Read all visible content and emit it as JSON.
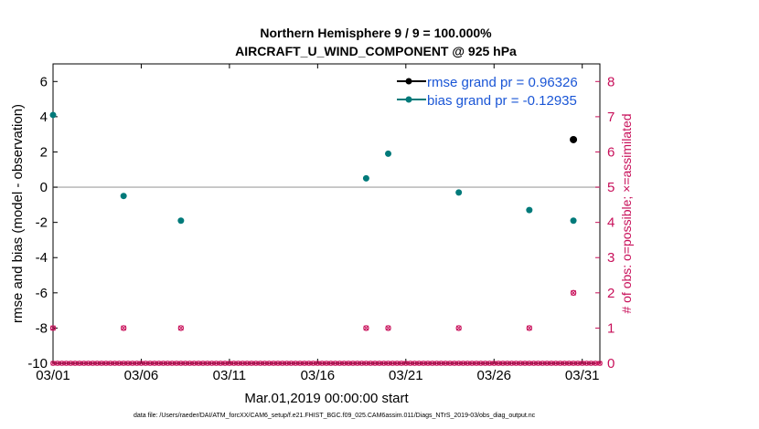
{
  "chart_data": {
    "type": "scatter",
    "title_line1": "Northern Hemisphere 9 / 9 = 100.000%",
    "title_line2": "AIRCRAFT_U_WIND_COMPONENT @ 925 hPa",
    "xlabel": "Mar.01,2019 00:00:00 start",
    "ylabel": "rmse and bias (model - observation)",
    "y2label": "# of obs: o=possible; ×=assimilated",
    "xlim": [
      1,
      32
    ],
    "ylim": [
      -10,
      7
    ],
    "y2lim": [
      0,
      8.5
    ],
    "x_ticks": [
      1,
      6,
      11,
      16,
      21,
      26,
      31
    ],
    "x_tick_labels": [
      "03/01",
      "03/06",
      "03/11",
      "03/16",
      "03/21",
      "03/26",
      "03/31"
    ],
    "y_ticks": [
      -10,
      -8,
      -6,
      -4,
      -2,
      0,
      2,
      4,
      6
    ],
    "y_tick_labels": [
      "-10",
      "-8",
      "-6",
      "-4",
      "-2",
      "0",
      "2",
      "4",
      "6"
    ],
    "y2_ticks": [
      0,
      1,
      2,
      3,
      4,
      5,
      6,
      7,
      8
    ],
    "y2_tick_labels": [
      "0",
      "1",
      "2",
      "3",
      "4",
      "5",
      "6",
      "7",
      "8"
    ],
    "legend": [
      {
        "label": "rmse grand pr = 0.96326",
        "color": "#000000"
      },
      {
        "label": "bias grand pr = -0.12935",
        "color": "#007a7a"
      }
    ],
    "series": [
      {
        "name": "rmse",
        "color": "#000000",
        "x": [
          30.5
        ],
        "y": [
          2.7
        ]
      },
      {
        "name": "bias",
        "color": "#007a7a",
        "x": [
          1.0,
          5.0,
          8.25,
          18.75,
          20.0,
          24.0,
          28.0,
          30.5
        ],
        "y": [
          4.1,
          -0.5,
          -1.9,
          0.5,
          1.9,
          -0.3,
          -1.3,
          -1.9
        ]
      },
      {
        "name": "obs possible",
        "color": "#c8105a",
        "x": [
          1.0,
          5.0,
          8.25,
          18.75,
          20.0,
          24.0,
          28.0,
          30.5
        ],
        "y": [
          1,
          1,
          1,
          1,
          1,
          1,
          1,
          2
        ]
      }
    ],
    "zero_counts_interval_days": 0.25,
    "colors": {
      "rmse": "#000000",
      "bias": "#007a7a",
      "obs": "#c8105a",
      "zero_line": "#b0b0b0",
      "legend_text": "#1a56d6"
    }
  },
  "footer": "data file: /Users/raeder/DAI/ATM_forcXX/CAM6_setup/f.e21.FHIST_BGC.f09_025.CAM6assim.011/Diags_NTrS_2019-03/obs_diag_output.nc"
}
